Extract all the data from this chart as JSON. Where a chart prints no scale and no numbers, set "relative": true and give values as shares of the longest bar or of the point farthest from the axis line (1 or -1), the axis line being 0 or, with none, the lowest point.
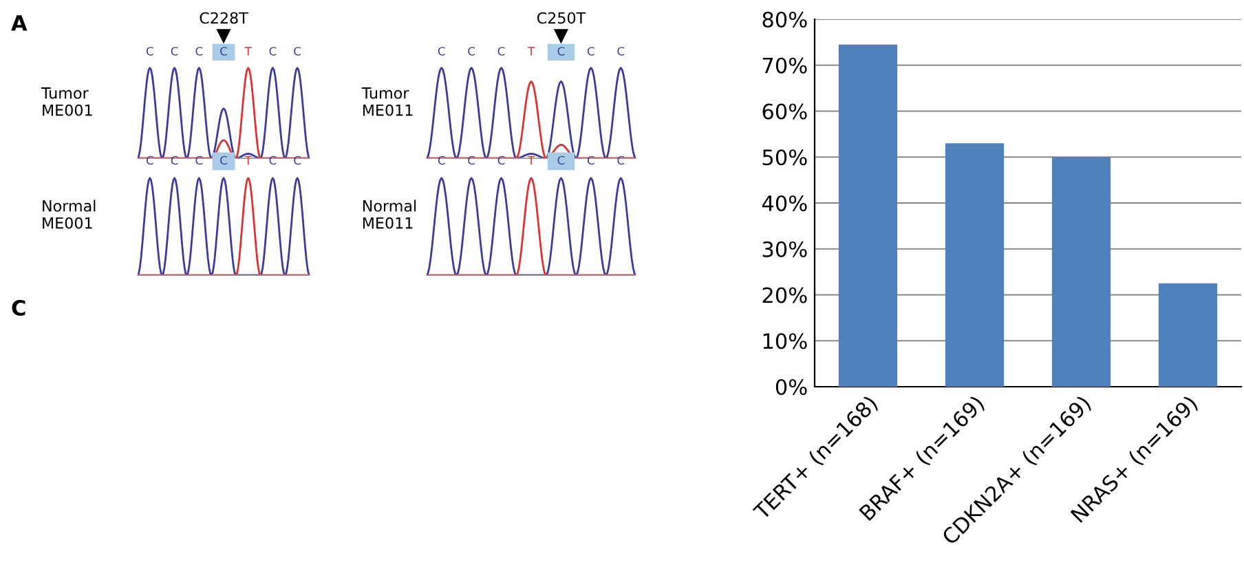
{
  "chart_data": [
    {
      "type": "line",
      "relative": true,
      "title": "C228T",
      "ylabel": "Tumor\nME001",
      "annotations": [
        "A",
        "CCCCTCC"
      ],
      "categories": [
        null,
        null,
        null,
        null,
        null,
        null,
        null,
        null,
        null,
        null,
        null,
        null,
        null,
        null,
        null
      ],
      "series": [
        {
          "color": "#3a3aa0",
          "values": [
            0,
            1,
            0,
            1,
            0,
            1,
            0,
            0.55,
            0,
            0.05,
            0,
            1,
            0,
            1,
            0
          ]
        },
        {
          "color": "#e03030",
          "values": [
            0,
            0,
            0,
            0,
            0,
            0,
            0,
            0.2,
            0,
            1,
            0,
            0,
            0,
            0,
            0
          ]
        }
      ]
    },
    {
      "type": "line",
      "relative": true,
      "title": "C250T",
      "ylabel": "Tumor\nME011",
      "annotations": [
        "CCCTCCC"
      ],
      "categories": [
        null,
        null,
        null,
        null,
        null,
        null,
        null,
        null,
        null,
        null,
        null,
        null,
        null,
        null,
        null
      ],
      "series": [
        {
          "color": "#3a3aa0",
          "values": [
            0,
            1,
            0,
            1,
            0,
            1,
            0,
            0.05,
            0,
            0.85,
            0,
            1,
            0,
            1,
            0
          ]
        },
        {
          "color": "#e03030",
          "values": [
            0,
            0,
            0,
            0,
            0,
            0,
            0,
            0.85,
            0,
            0.15,
            0,
            0,
            0,
            0,
            0
          ]
        }
      ]
    },
    {
      "type": "line",
      "relative": true,
      "ylabel": "Normal\nME001",
      "annotations": [
        "C",
        "CCCCTCC"
      ],
      "categories": [
        null,
        null,
        null,
        null,
        null,
        null,
        null,
        null,
        null,
        null,
        null,
        null,
        null,
        null,
        null
      ],
      "series": [
        {
          "color": "#3a3aa0",
          "values": [
            0,
            1,
            0,
            1,
            0,
            1,
            0,
            1,
            0,
            0,
            0,
            1,
            0,
            1,
            0
          ]
        },
        {
          "color": "#e03030",
          "values": [
            0,
            0,
            0,
            0,
            0,
            0,
            0,
            0,
            0,
            1,
            0,
            0,
            0,
            0,
            0
          ]
        }
      ]
    },
    {
      "type": "line",
      "relative": true,
      "ylabel": "Normal\nME011",
      "annotations": [
        "CCCTCCC"
      ],
      "categories": [
        null,
        null,
        null,
        null,
        null,
        null,
        null,
        null,
        null,
        null,
        null,
        null,
        null,
        null,
        null
      ],
      "series": [
        {
          "color": "#3a3aa0",
          "values": [
            0,
            1,
            0,
            1,
            0,
            1,
            0,
            0,
            0,
            1,
            0,
            1,
            0,
            1,
            0
          ]
        },
        {
          "color": "#e03030",
          "values": [
            0,
            0,
            0,
            0,
            0,
            0,
            0,
            1,
            0,
            0,
            0,
            0,
            0,
            0,
            0
          ]
        }
      ]
    },
    {
      "type": "bar",
      "categories": [
        "TERT+ (n=168)",
        "BRAF+ (n=169)",
        "CDKN2A+ (n=169)",
        "NRAS+ (n=169)"
      ],
      "values": [
        74.5,
        53,
        50,
        22.5
      ],
      "color": "#4f81bd",
      "ylim": [
        0,
        80
      ],
      "yticks": [
        {
          "value": 0,
          "label": "0%"
        },
        {
          "value": 10,
          "label": "10%"
        },
        {
          "value": 20,
          "label": "20%"
        },
        {
          "value": 30,
          "label": "30%"
        },
        {
          "value": 40,
          "label": "40%"
        },
        {
          "value": 50,
          "label": "50%"
        },
        {
          "value": 60,
          "label": "60%"
        },
        {
          "value": 70,
          "label": "70%"
        },
        {
          "value": 80,
          "label": "80%"
        }
      ],
      "grid": "y",
      "legend": false
    }
  ]
}
